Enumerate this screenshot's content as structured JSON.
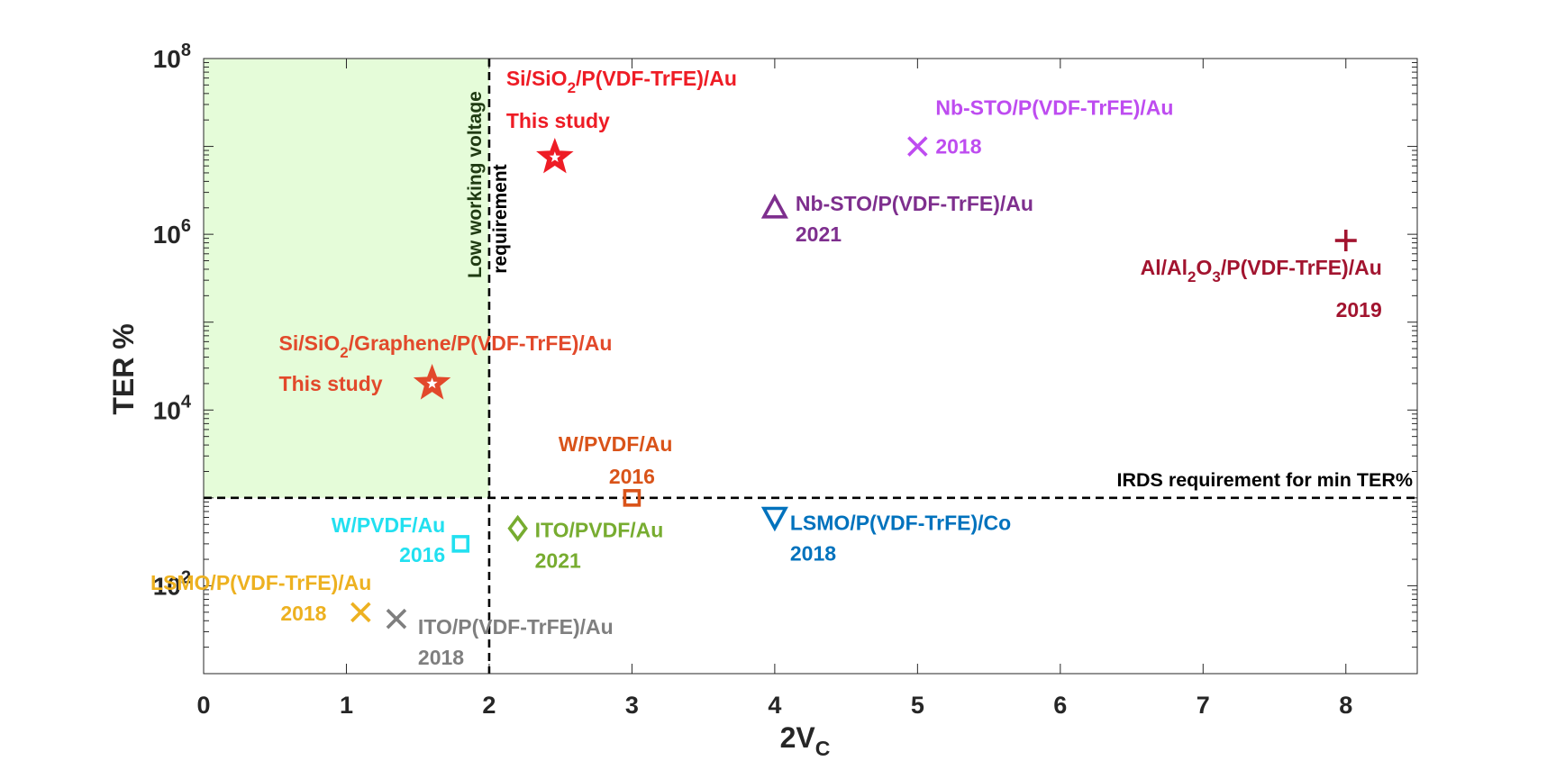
{
  "chart_data": {
    "type": "scatter",
    "xlabel": "2V",
    "xlabel_sub": "C",
    "ylabel": "TER %",
    "xlim": [
      0,
      8.5
    ],
    "ylim": [
      10,
      100000000
    ],
    "yscale": "log",
    "xticks": [
      0,
      1,
      2,
      3,
      4,
      5,
      6,
      7,
      8
    ],
    "yticks": [
      {
        "value": 100,
        "base": "10",
        "exp": "2"
      },
      {
        "value": 10000,
        "base": "10",
        "exp": "4"
      },
      {
        "value": 1000000,
        "base": "10",
        "exp": "6"
      },
      {
        "value": 100000000,
        "base": "10",
        "exp": "8"
      }
    ],
    "grid": false,
    "region": {
      "x": [
        0,
        2
      ],
      "y": [
        1000,
        100000000
      ],
      "color": "#e5fcd9"
    },
    "threshold_x": 2,
    "threshold_y": 1000,
    "region_label_line1": "Low working voltage",
    "region_label_line2": "requirement",
    "threshold_y_label": "IRDS requirement for min TER%",
    "points": [
      {
        "x": 2.46,
        "y": 7500000,
        "marker": "star",
        "color": "#ee1c25",
        "label_parts": [
          [
            "Si/SiO",
            ""
          ],
          [
            "2",
            "sub"
          ],
          [
            "/P(VDF-TrFE)/Au",
            ""
          ]
        ],
        "year": "This study"
      },
      {
        "x": 1.6,
        "y": 20000,
        "marker": "star",
        "color": "#e2492b",
        "label_parts": [
          [
            "Si/SiO",
            ""
          ],
          [
            "2",
            "sub"
          ],
          [
            "/Graphene/P(VDF-TrFE)/Au",
            ""
          ]
        ],
        "year": "This study"
      },
      {
        "x": 5.0,
        "y": 10000000,
        "marker": "x",
        "color": "#be4cf0",
        "label_parts": [
          [
            "Nb-STO/P(VDF-TrFE)/Au",
            ""
          ]
        ],
        "year": "2018"
      },
      {
        "x": 4.0,
        "y": 2000000,
        "marker": "triangle-up",
        "color": "#7e2f8e",
        "label_parts": [
          [
            "Nb-STO/P(VDF-TrFE)/Au",
            ""
          ]
        ],
        "year": "2021"
      },
      {
        "x": 8.0,
        "y": 850000,
        "marker": "plus",
        "color": "#a2142f",
        "label_parts": [
          [
            "Al/Al",
            ""
          ],
          [
            "2",
            "sub"
          ],
          [
            "O",
            ""
          ],
          [
            "3",
            "sub"
          ],
          [
            "/P(VDF-TrFE)/Au",
            ""
          ]
        ],
        "year": "2019"
      },
      {
        "x": 3.0,
        "y": 1000,
        "marker": "square",
        "color": "#d95319",
        "label_parts": [
          [
            "W/PVDF/Au",
            ""
          ]
        ],
        "year": "2016"
      },
      {
        "x": 2.2,
        "y": 450,
        "marker": "diamond",
        "color": "#77ac30",
        "label_parts": [
          [
            "ITO/PVDF/Au",
            ""
          ]
        ],
        "year": "2021"
      },
      {
        "x": 4.0,
        "y": 600,
        "marker": "triangle-down",
        "color": "#0072bd",
        "label_parts": [
          [
            "LSMO/P(VDF-TrFE)/Co",
            ""
          ]
        ],
        "year": "2018"
      },
      {
        "x": 1.8,
        "y": 300,
        "marker": "square",
        "color": "#22e0f0",
        "label_parts": [
          [
            "W/PVDF/Au",
            ""
          ]
        ],
        "year": "2016"
      },
      {
        "x": 1.1,
        "y": 50,
        "marker": "x",
        "color": "#edb120",
        "label_parts": [
          [
            "LSMO/P(VDF-TrFE)/Au",
            ""
          ]
        ],
        "year": "2018"
      },
      {
        "x": 1.35,
        "y": 42,
        "marker": "x",
        "color": "#7f7f7f",
        "label_parts": [
          [
            "ITO/P(VDF-TrFE)/Au",
            ""
          ]
        ],
        "year": "2018"
      }
    ]
  }
}
